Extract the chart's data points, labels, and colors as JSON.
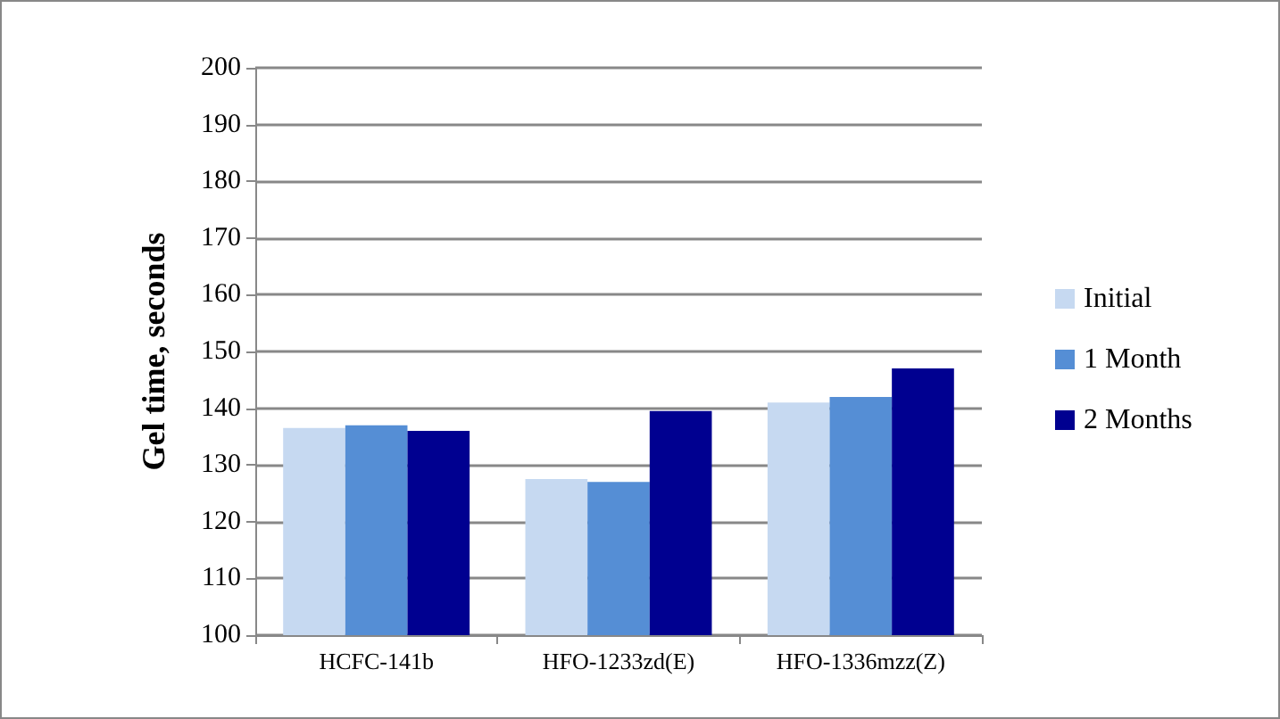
{
  "chart_data": {
    "type": "bar",
    "ylabel": "Gel time, seconds",
    "categories": [
      "HCFC-141b",
      "HFO-1233zd(E)",
      "HFO-1336mzz(Z)"
    ],
    "series": [
      {
        "name": "Initial",
        "color": "#c6d9f1",
        "values": [
          136.5,
          127.5,
          141
        ]
      },
      {
        "name": "1 Month",
        "color": "#558ed5",
        "values": [
          137,
          127,
          142
        ]
      },
      {
        "name": "2 Months",
        "color": "#000090",
        "values": [
          136,
          139.5,
          147
        ]
      }
    ],
    "ylim": [
      100,
      200
    ],
    "yticks": [
      100,
      110,
      120,
      130,
      140,
      150,
      160,
      170,
      180,
      190,
      200
    ],
    "grid": "y",
    "legend": "right"
  }
}
